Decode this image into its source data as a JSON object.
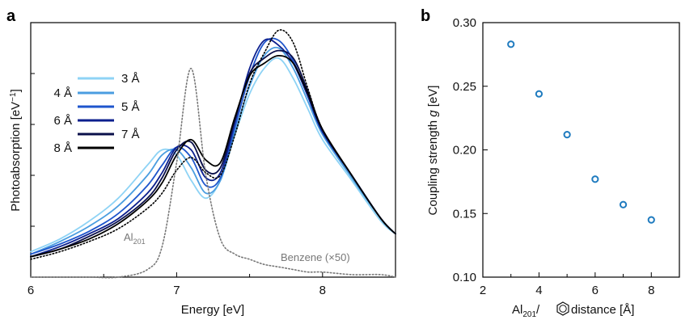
{
  "colors": {
    "d3": "#8ed3f5",
    "d4": "#4a9de0",
    "d5": "#1e55cc",
    "d6": "#0c1f8e",
    "d7": "#0a0f4a",
    "d8": "#000000",
    "dotted_black": "#000000",
    "dotted_gray": "#777777",
    "marker": "#1f7bbf"
  },
  "panel_a": {
    "letter": "a",
    "xlabel": "Energy [eV]",
    "ylabel_main": "Photoabsorption [eV",
    "ylabel_sup": "−1",
    "ylabel_end": "]",
    "annotation_al": "Al",
    "annotation_al_sub": "201",
    "annotation_benzene": "Benzene (×50)"
  },
  "panel_b": {
    "letter": "b",
    "ylabel_main": "Coupling strength ",
    "ylabel_italic": "g",
    "ylabel_end": " [eV]",
    "xlabel_pre": "Al",
    "xlabel_sub": "201",
    "xlabel_post": "/",
    "xlabel_tail": " distance [Å]",
    "xlabel_icon": "benzene-ring-icon"
  },
  "chart_data": [
    {
      "type": "line",
      "xlabel": "Energy [eV]",
      "ylabel": "Photoabsorption [eV−1]",
      "xlim": [
        6,
        8.5
      ],
      "ylim": [
        0,
        1.0
      ],
      "xticks": [
        "6",
        "7",
        "8"
      ],
      "grid": false,
      "legend_position": "left",
      "x": [
        6.0,
        6.2,
        6.4,
        6.6,
        6.8,
        6.9,
        7.0,
        7.1,
        7.2,
        7.3,
        7.4,
        7.5,
        7.6,
        7.7,
        7.8,
        7.9,
        8.0,
        8.2,
        8.4,
        8.5
      ],
      "series": [
        {
          "name": "3 Å",
          "color_key": "d3",
          "values": [
            0.1,
            0.15,
            0.22,
            0.31,
            0.44,
            0.5,
            0.48,
            0.38,
            0.31,
            0.38,
            0.56,
            0.72,
            0.82,
            0.86,
            0.78,
            0.66,
            0.54,
            0.38,
            0.22,
            0.17
          ]
        },
        {
          "name": "4 Å",
          "color_key": "d4",
          "values": [
            0.09,
            0.14,
            0.2,
            0.28,
            0.4,
            0.48,
            0.5,
            0.43,
            0.33,
            0.38,
            0.57,
            0.75,
            0.87,
            0.9,
            0.82,
            0.69,
            0.56,
            0.39,
            0.23,
            0.17
          ]
        },
        {
          "name": "5 Å",
          "color_key": "d5",
          "values": [
            0.09,
            0.13,
            0.18,
            0.25,
            0.36,
            0.44,
            0.51,
            0.47,
            0.36,
            0.39,
            0.59,
            0.79,
            0.92,
            0.93,
            0.85,
            0.71,
            0.57,
            0.4,
            0.23,
            0.17
          ]
        },
        {
          "name": "6 Å",
          "color_key": "d6",
          "values": [
            0.08,
            0.12,
            0.17,
            0.23,
            0.33,
            0.41,
            0.51,
            0.5,
            0.39,
            0.41,
            0.61,
            0.82,
            0.93,
            0.91,
            0.84,
            0.71,
            0.57,
            0.4,
            0.23,
            0.17
          ]
        },
        {
          "name": "7 Å",
          "color_key": "d7",
          "values": [
            0.08,
            0.11,
            0.16,
            0.22,
            0.31,
            0.39,
            0.5,
            0.53,
            0.42,
            0.43,
            0.62,
            0.8,
            0.86,
            0.89,
            0.86,
            0.73,
            0.58,
            0.4,
            0.23,
            0.17
          ]
        },
        {
          "name": "8 Å",
          "color_key": "d8",
          "values": [
            0.08,
            0.11,
            0.15,
            0.21,
            0.3,
            0.37,
            0.48,
            0.54,
            0.46,
            0.45,
            0.63,
            0.79,
            0.84,
            0.87,
            0.84,
            0.72,
            0.58,
            0.4,
            0.23,
            0.17
          ]
        },
        {
          "name": "",
          "style": "dotted",
          "color_key": "dotted_black",
          "values": [
            0.07,
            0.1,
            0.14,
            0.19,
            0.27,
            0.33,
            0.42,
            0.47,
            0.41,
            0.4,
            0.56,
            0.76,
            0.88,
            0.97,
            0.92,
            0.74,
            0.58,
            0.4,
            0.23,
            0.17
          ]
        },
        {
          "name": "",
          "style": "dotted",
          "color_key": "dotted_gray",
          "values": [
            0.0,
            0.0,
            0.0,
            0.0,
            0.03,
            0.12,
            0.45,
            0.82,
            0.4,
            0.15,
            0.09,
            0.07,
            0.05,
            0.04,
            0.03,
            0.02,
            0.02,
            0.01,
            0.01,
            0.0
          ]
        }
      ]
    },
    {
      "type": "scatter",
      "xlabel": "Al201/ distance [Å]",
      "ylabel": "Coupling strength g [eV]",
      "xlim": [
        2,
        9
      ],
      "ylim": [
        0.1,
        0.3
      ],
      "xticks": [
        2,
        4,
        6,
        8
      ],
      "yticks": [
        "0.10",
        "0.15",
        "0.20",
        "0.25",
        "0.30"
      ],
      "grid": false,
      "x": [
        3,
        4,
        5,
        6,
        7,
        8
      ],
      "y": [
        0.283,
        0.244,
        0.212,
        0.177,
        0.157,
        0.145
      ]
    }
  ]
}
